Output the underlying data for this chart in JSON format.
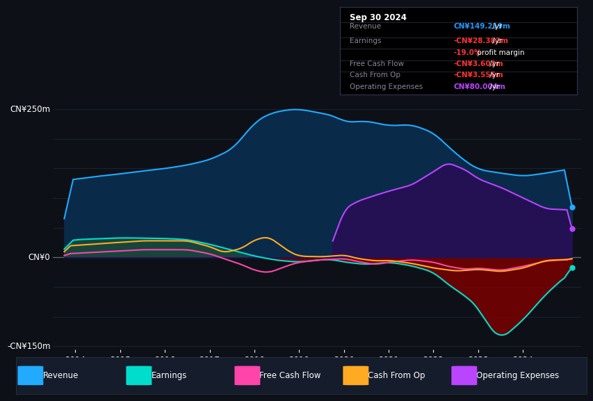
{
  "bg_color": "#0d1117",
  "plot_bg_color": "#111827",
  "grid_color": "#1e2a3a",
  "zero_line_color": "#666677",
  "ylim": [
    -155,
    275
  ],
  "ytick_positions": [
    -150,
    0,
    250
  ],
  "ytick_labels": [
    "-CN¥150m",
    "CN¥0",
    "CN¥250m"
  ],
  "xlim_start": 2013.5,
  "xlim_end": 2025.3,
  "xticks": [
    2014,
    2015,
    2016,
    2017,
    2018,
    2019,
    2020,
    2021,
    2022,
    2023,
    2024
  ],
  "shade_start_x": 2019.75,
  "revenue_color": "#22aaff",
  "revenue_fill": "#0a2a4a",
  "earnings_color": "#00ddcc",
  "earnings_fill_pos": "#1a4a3a",
  "earnings_fill_neg": "#7a0000",
  "fcf_color": "#ff44aa",
  "cashfromop_color": "#ffaa22",
  "opex_color": "#bb44ff",
  "opex_fill": "#251055",
  "infobox_bg": "#000000",
  "info_title": "Sep 30 2024",
  "info_label_color": "#888899",
  "info_rows": [
    {
      "label": "Revenue",
      "value": "CN¥149.219m",
      "val_color": "#2299ff",
      "suffix": " /yr"
    },
    {
      "label": "Earnings",
      "value": "-CN¥28.382m",
      "val_color": "#ff3333",
      "suffix": " /yr"
    },
    {
      "label": "",
      "value": "-19.0%",
      "val_color": "#ff3333",
      "suffix": " profit margin"
    },
    {
      "label": "Free Cash Flow",
      "value": "-CN¥3.602m",
      "val_color": "#ff3333",
      "suffix": " /yr"
    },
    {
      "label": "Cash From Op",
      "value": "-CN¥3.556m",
      "val_color": "#ff3333",
      "suffix": " /yr"
    },
    {
      "label": "Operating Expenses",
      "value": "CN¥80.004m",
      "val_color": "#bb44ff",
      "suffix": " /yr"
    }
  ],
  "legend_bg": "#151c2c",
  "legend_items": [
    {
      "color": "#22aaff",
      "label": "Revenue"
    },
    {
      "color": "#00ddcc",
      "label": "Earnings"
    },
    {
      "color": "#ff44aa",
      "label": "Free Cash Flow"
    },
    {
      "color": "#ffaa22",
      "label": "Cash From Op"
    },
    {
      "color": "#bb44ff",
      "label": "Operating Expenses"
    }
  ]
}
